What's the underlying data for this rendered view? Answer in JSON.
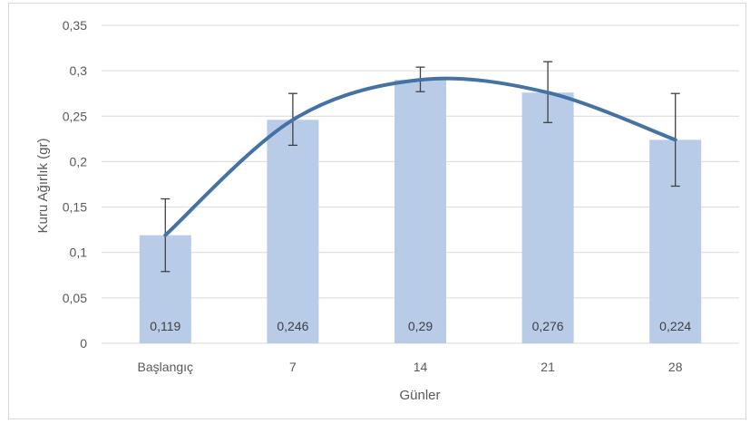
{
  "chart_data": {
    "type": "bar",
    "title": "",
    "xlabel": "Günler",
    "ylabel": "Kuru Ağırlık (gr)",
    "categories": [
      "Başlangıç",
      "7",
      "14",
      "21",
      "28"
    ],
    "values": [
      0.119,
      0.246,
      0.29,
      0.276,
      0.224
    ],
    "data_labels": [
      "0,119",
      "0,246",
      "0,29",
      "0,276",
      "0,224"
    ],
    "error_bars": {
      "upper": [
        0.159,
        0.275,
        0.304,
        0.31,
        0.275
      ],
      "lower": [
        0.079,
        0.218,
        0.277,
        0.243,
        0.173
      ]
    },
    "trendline": {
      "type": "smooth-line",
      "values": [
        0.119,
        0.246,
        0.29,
        0.276,
        0.224
      ]
    },
    "ylim": [
      0,
      0.35
    ],
    "yticks": [
      0,
      0.05,
      0.1,
      0.15,
      0.2,
      0.25,
      0.3,
      0.35
    ],
    "ytick_labels": [
      "0",
      "0,05",
      "0,1",
      "0,15",
      "0,2",
      "0,25",
      "0,3",
      "0,35"
    ],
    "grid": "horizontal",
    "legend": "none",
    "colors": {
      "bar": "#b8cce8",
      "line": "#4472a4",
      "error_bar": "#404040",
      "grid": "#d9d9d9"
    }
  }
}
